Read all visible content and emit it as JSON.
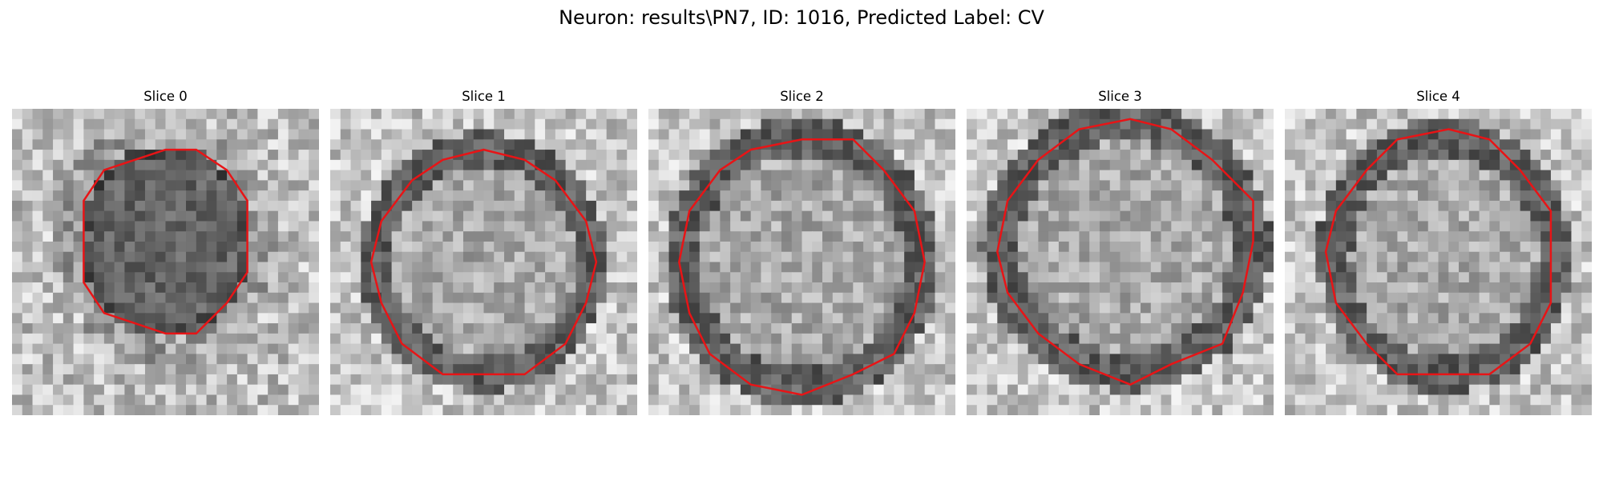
{
  "figure": {
    "title": "Neuron: results\\PN7, ID: 1016, Predicted Label: CV"
  },
  "panels": [
    {
      "title": "Slice 0",
      "center": [
        0.5,
        0.43
      ],
      "rx": 0.28,
      "ry": 0.31,
      "dark_fill": true
    },
    {
      "title": "Slice 1",
      "center": [
        0.5,
        0.5
      ],
      "rx": 0.36,
      "ry": 0.38,
      "dark_fill": false
    },
    {
      "title": "Slice 2",
      "center": [
        0.5,
        0.5
      ],
      "rx": 0.4,
      "ry": 0.42,
      "dark_fill": false
    },
    {
      "title": "Slice 3",
      "center": [
        0.52,
        0.45
      ],
      "rx": 0.42,
      "ry": 0.42,
      "dark_fill": false
    },
    {
      "title": "Slice 4",
      "center": [
        0.52,
        0.48
      ],
      "rx": 0.37,
      "ry": 0.4,
      "dark_fill": false
    }
  ],
  "colors": {
    "contour": "#e81416"
  }
}
